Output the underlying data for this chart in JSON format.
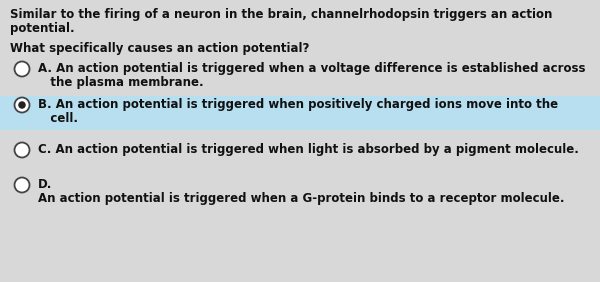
{
  "background_color": "#d8d8d8",
  "highlight_color": "#b8dff0",
  "text_color": "#111111",
  "intro_text_line1": "Similar to the firing of a neuron in the brain, channelrhodopsin triggers an action",
  "intro_text_line2": "potential.",
  "question_text": "What specifically causes an action potential?",
  "options": [
    {
      "label": "A",
      "line1": "A. An action potential is triggered when a voltage difference is established across",
      "line2": "   the plasma membrane.",
      "selected": false,
      "highlighted": false
    },
    {
      "label": "B",
      "line1": "B. An action potential is triggered when positively charged ions move into the",
      "line2": "   cell.",
      "selected": true,
      "highlighted": true
    },
    {
      "label": "C",
      "line1": "C. An action potential is triggered when light is absorbed by a pigment molecule.",
      "line2": "",
      "selected": false,
      "highlighted": false
    },
    {
      "label": "D",
      "line1": "D.",
      "line2": "An action potential is triggered when a G-protein binds to a receptor molecule.",
      "selected": false,
      "highlighted": false
    }
  ],
  "font_size": 8.5,
  "figsize": [
    6.0,
    2.82
  ],
  "dpi": 100
}
